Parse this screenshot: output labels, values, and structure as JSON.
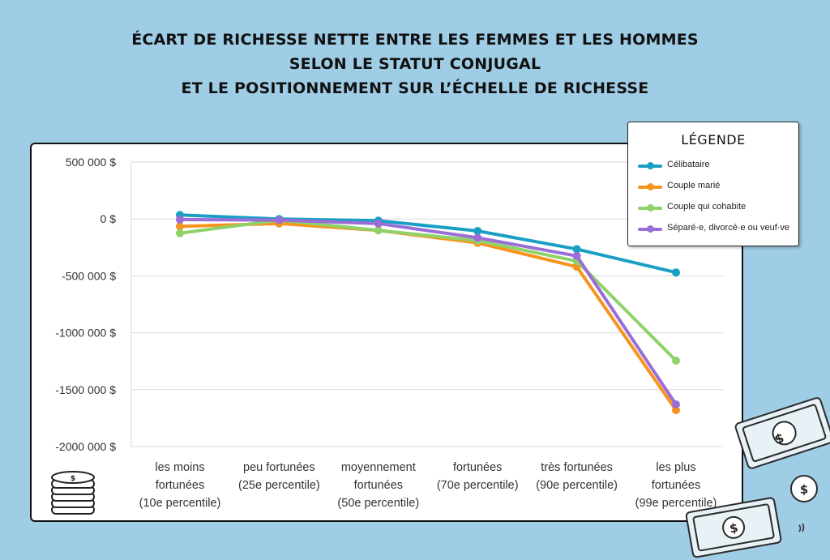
{
  "title_lines": [
    "ÉCART DE RICHESSE NETTE ENTRE LES FEMMES ET LES HOMMES",
    "SELON LE STATUT CONJUGAL",
    "ET LE POSITIONNEMENT SUR L’ÉCHELLE DE RICHESSE"
  ],
  "legend": {
    "title": "LÉGENDE",
    "items": [
      {
        "label": "Célibataire",
        "color": "#1a9fc4"
      },
      {
        "label": "Couple marié",
        "color": "#f7941d"
      },
      {
        "label": "Couple qui cohabite",
        "color": "#8fd26a"
      },
      {
        "label": "Séparé·e, divorcé·e ou veuf·ve",
        "color": "#9b6dd6"
      }
    ]
  },
  "icons": {
    "coin_stack": "coin-stack-icon",
    "banknotes": "banknote-icon",
    "coin": "dollar-coin-icon"
  },
  "chart_data": {
    "type": "line",
    "title": "ÉCART DE RICHESSE NETTE ENTRE LES FEMMES ET LES HOMMES SELON LE STATUT CONJUGAL ET LE POSITIONNEMENT SUR L’ÉCHELLE DE RICHESSE",
    "categories": [
      [
        "les moins",
        "fortunées",
        "(10e percentile)"
      ],
      [
        "peu fortunées",
        "(25e percentile)"
      ],
      [
        "moyennement",
        "fortunées",
        "(50e percentile)"
      ],
      [
        "fortunées",
        "(70e percentile)"
      ],
      [
        "très fortunées",
        "(90e percentile)"
      ],
      [
        "les plus",
        "fortunées",
        "(99e percentile)"
      ]
    ],
    "y_ticks": [
      {
        "value": 500000,
        "label": "500 000 $"
      },
      {
        "value": 0,
        "label": "0 $"
      },
      {
        "value": -500000,
        "label": "-500 000 $"
      },
      {
        "value": -1000000,
        "label": "-1000 000 $"
      },
      {
        "value": -1500000,
        "label": "-1500 000 $"
      },
      {
        "value": -2000000,
        "label": "-2000 000 $"
      }
    ],
    "ylim": [
      -2000000,
      500000
    ],
    "grid": true,
    "legend_position": "top-right",
    "series": [
      {
        "name": "Célibataire",
        "color": "#1a9fc4",
        "values": [
          35000,
          0,
          -15000,
          -105000,
          -265000,
          -470000
        ]
      },
      {
        "name": "Couple marié",
        "color": "#f7941d",
        "values": [
          -65000,
          -40000,
          -100000,
          -210000,
          -420000,
          -1680000
        ]
      },
      {
        "name": "Couple qui cohabite",
        "color": "#8fd26a",
        "values": [
          -125000,
          -10000,
          -100000,
          -190000,
          -370000,
          -1245000
        ]
      },
      {
        "name": "Séparé·e, divorcé·e ou veuf·ve",
        "color": "#9b6dd6",
        "values": [
          -5000,
          -10000,
          -40000,
          -165000,
          -325000,
          -1630000
        ]
      }
    ]
  }
}
